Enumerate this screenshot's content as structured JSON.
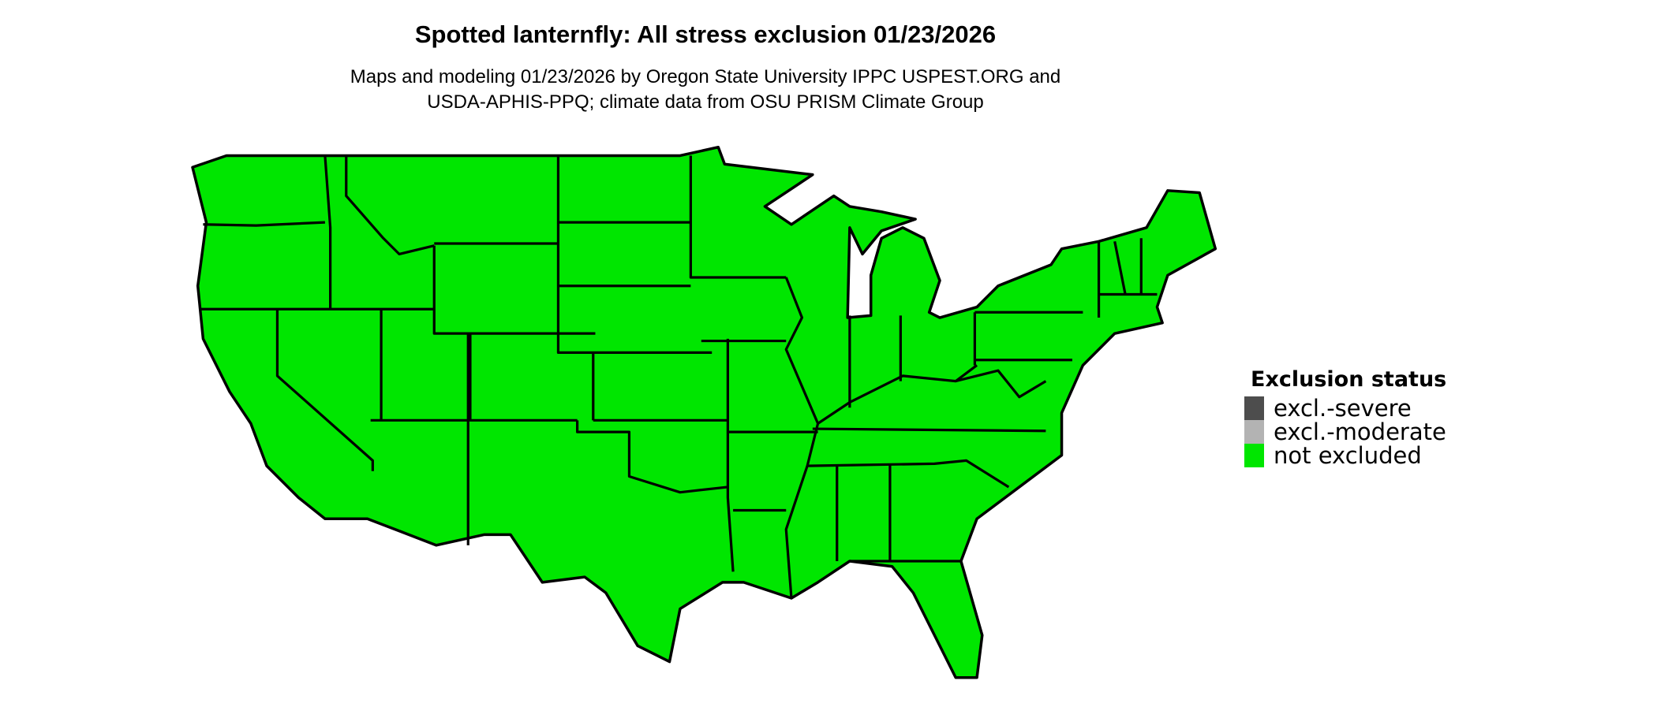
{
  "title": "Spotted lanternfly: All stress exclusion 01/23/2026",
  "subtitle_lines": [
    "Maps and modeling 01/23/2026 by Oregon State University IPPC USPEST.ORG and",
    "USDA-APHIS-PPQ; climate data from OSU PRISM Climate Group"
  ],
  "map": {
    "region": "Contiguous United States, state boundaries",
    "fill_status": "not excluded",
    "fill_color": "#00e600",
    "border_color": "#000000"
  },
  "legend": {
    "title": "Exclusion status",
    "items": [
      {
        "label": "excl.-severe",
        "color": "#4d4d4d"
      },
      {
        "label": "excl.-moderate",
        "color": "#b3b3b3"
      },
      {
        "label": "not excluded",
        "color": "#00e600"
      }
    ]
  }
}
